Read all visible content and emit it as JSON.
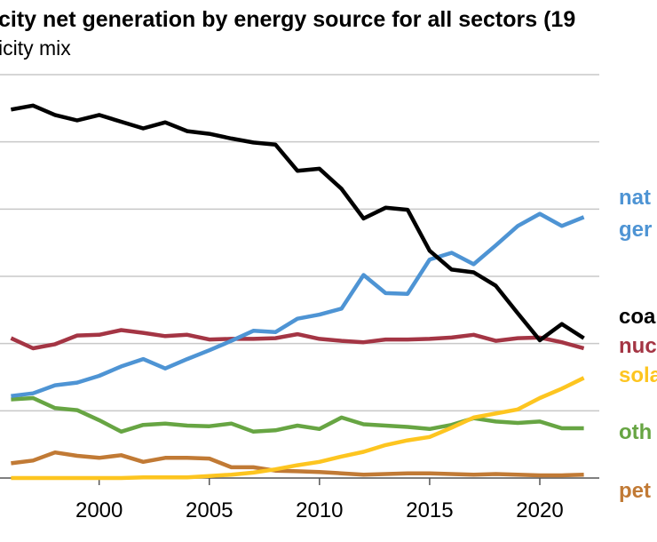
{
  "chart_data": {
    "type": "line",
    "title": "city net generation by energy source for all sectors (19",
    "subtitle": "icity mix",
    "xlabel": "",
    "ylabel": "",
    "xlim": [
      1995.5,
      2022.7
    ],
    "ylim": [
      0,
      60
    ],
    "y_gridlines": [
      0,
      10,
      20,
      30,
      40,
      50,
      60
    ],
    "grid": true,
    "legend": "direct labels at right edge",
    "x_ticks": [
      {
        "value": 2000,
        "label": "2000"
      },
      {
        "value": 2005,
        "label": "2005"
      },
      {
        "value": 2010,
        "label": "2010"
      },
      {
        "value": 2015,
        "label": "2015"
      },
      {
        "value": 2020,
        "label": "2020"
      }
    ],
    "series": [
      {
        "key": "coal",
        "label_lines": [
          "coa"
        ],
        "color": "#000000",
        "points": [
          [
            1996,
            54.8
          ],
          [
            1997,
            55.4
          ],
          [
            1998,
            54.0
          ],
          [
            1999,
            53.2
          ],
          [
            2000,
            54.0
          ],
          [
            2001,
            53.0
          ],
          [
            2002,
            52.0
          ],
          [
            2003,
            52.9
          ],
          [
            2004,
            51.6
          ],
          [
            2005,
            51.2
          ],
          [
            2006,
            50.5
          ],
          [
            2007,
            49.9
          ],
          [
            2008,
            49.6
          ],
          [
            2009,
            45.7
          ],
          [
            2010,
            46.0
          ],
          [
            2011,
            43.0
          ],
          [
            2012,
            38.6
          ],
          [
            2013,
            40.2
          ],
          [
            2014,
            39.9
          ],
          [
            2015,
            33.8
          ],
          [
            2016,
            31.0
          ],
          [
            2017,
            30.6
          ],
          [
            2018,
            28.6
          ],
          [
            2019,
            24.5
          ],
          [
            2020,
            20.5
          ],
          [
            2021,
            22.9
          ],
          [
            2022,
            20.8
          ]
        ]
      },
      {
        "key": "natural_gas",
        "label_lines": [
          "nat",
          "ger"
        ],
        "color": "#4e94d4",
        "points": [
          [
            1996,
            12.2
          ],
          [
            1997,
            12.6
          ],
          [
            1998,
            13.8
          ],
          [
            1999,
            14.2
          ],
          [
            2000,
            15.2
          ],
          [
            2001,
            16.6
          ],
          [
            2002,
            17.7
          ],
          [
            2003,
            16.3
          ],
          [
            2004,
            17.7
          ],
          [
            2005,
            19.0
          ],
          [
            2006,
            20.4
          ],
          [
            2007,
            21.9
          ],
          [
            2008,
            21.7
          ],
          [
            2009,
            23.7
          ],
          [
            2010,
            24.3
          ],
          [
            2011,
            25.2
          ],
          [
            2012,
            30.2
          ],
          [
            2013,
            27.5
          ],
          [
            2014,
            27.4
          ],
          [
            2015,
            32.5
          ],
          [
            2016,
            33.5
          ],
          [
            2017,
            31.8
          ],
          [
            2018,
            34.6
          ],
          [
            2019,
            37.5
          ],
          [
            2020,
            39.3
          ],
          [
            2021,
            37.5
          ],
          [
            2022,
            38.8
          ]
        ]
      },
      {
        "key": "nuclear",
        "label_lines": [
          "nuc"
        ],
        "color": "#a43544",
        "points": [
          [
            1996,
            20.8
          ],
          [
            1997,
            19.3
          ],
          [
            1998,
            19.9
          ],
          [
            1999,
            21.2
          ],
          [
            2000,
            21.3
          ],
          [
            2001,
            22.0
          ],
          [
            2002,
            21.6
          ],
          [
            2003,
            21.1
          ],
          [
            2004,
            21.3
          ],
          [
            2005,
            20.6
          ],
          [
            2006,
            20.7
          ],
          [
            2007,
            20.7
          ],
          [
            2008,
            20.8
          ],
          [
            2009,
            21.4
          ],
          [
            2010,
            20.7
          ],
          [
            2011,
            20.4
          ],
          [
            2012,
            20.2
          ],
          [
            2013,
            20.6
          ],
          [
            2014,
            20.6
          ],
          [
            2015,
            20.7
          ],
          [
            2016,
            20.9
          ],
          [
            2017,
            21.3
          ],
          [
            2018,
            20.4
          ],
          [
            2019,
            20.8
          ],
          [
            2020,
            20.9
          ],
          [
            2021,
            20.2
          ],
          [
            2022,
            19.3
          ]
        ]
      },
      {
        "key": "solar",
        "label_lines": [
          "sola"
        ],
        "color": "#fdc520",
        "points": [
          [
            1996,
            0.0
          ],
          [
            1997,
            0.0
          ],
          [
            1998,
            0.0
          ],
          [
            1999,
            0.0
          ],
          [
            2000,
            0.0
          ],
          [
            2001,
            0.0
          ],
          [
            2002,
            0.1
          ],
          [
            2003,
            0.1
          ],
          [
            2004,
            0.1
          ],
          [
            2005,
            0.3
          ],
          [
            2006,
            0.5
          ],
          [
            2007,
            0.8
          ],
          [
            2008,
            1.3
          ],
          [
            2009,
            1.9
          ],
          [
            2010,
            2.4
          ],
          [
            2011,
            3.2
          ],
          [
            2012,
            3.9
          ],
          [
            2013,
            4.9
          ],
          [
            2014,
            5.6
          ],
          [
            2015,
            6.1
          ],
          [
            2016,
            7.5
          ],
          [
            2017,
            9.0
          ],
          [
            2018,
            9.6
          ],
          [
            2019,
            10.2
          ],
          [
            2020,
            11.9
          ],
          [
            2021,
            13.3
          ],
          [
            2022,
            14.9
          ]
        ]
      },
      {
        "key": "other",
        "label_lines": [
          "oth"
        ],
        "color": "#67a543",
        "points": [
          [
            1996,
            11.7
          ],
          [
            1997,
            11.9
          ],
          [
            1998,
            10.4
          ],
          [
            1999,
            10.1
          ],
          [
            2000,
            8.6
          ],
          [
            2001,
            6.9
          ],
          [
            2002,
            7.9
          ],
          [
            2003,
            8.1
          ],
          [
            2004,
            7.8
          ],
          [
            2005,
            7.7
          ],
          [
            2006,
            8.1
          ],
          [
            2007,
            6.9
          ],
          [
            2008,
            7.1
          ],
          [
            2009,
            7.8
          ],
          [
            2010,
            7.3
          ],
          [
            2011,
            9.0
          ],
          [
            2012,
            8.0
          ],
          [
            2013,
            7.8
          ],
          [
            2014,
            7.6
          ],
          [
            2015,
            7.3
          ],
          [
            2016,
            7.9
          ],
          [
            2017,
            8.9
          ],
          [
            2018,
            8.4
          ],
          [
            2019,
            8.2
          ],
          [
            2020,
            8.4
          ],
          [
            2021,
            7.4
          ],
          [
            2022,
            7.4
          ]
        ]
      },
      {
        "key": "petroleum",
        "label_lines": [
          "pet"
        ],
        "color": "#c17a35",
        "points": [
          [
            1996,
            2.2
          ],
          [
            1997,
            2.6
          ],
          [
            1998,
            3.8
          ],
          [
            1999,
            3.3
          ],
          [
            2000,
            3.0
          ],
          [
            2001,
            3.4
          ],
          [
            2002,
            2.4
          ],
          [
            2003,
            3.0
          ],
          [
            2004,
            3.0
          ],
          [
            2005,
            2.9
          ],
          [
            2006,
            1.6
          ],
          [
            2007,
            1.6
          ],
          [
            2008,
            1.1
          ],
          [
            2009,
            1.0
          ],
          [
            2010,
            0.9
          ],
          [
            2011,
            0.7
          ],
          [
            2012,
            0.5
          ],
          [
            2013,
            0.6
          ],
          [
            2014,
            0.7
          ],
          [
            2015,
            0.7
          ],
          [
            2016,
            0.6
          ],
          [
            2017,
            0.5
          ],
          [
            2018,
            0.6
          ],
          [
            2019,
            0.5
          ],
          [
            2020,
            0.4
          ],
          [
            2021,
            0.4
          ],
          [
            2022,
            0.5
          ]
        ]
      }
    ]
  }
}
